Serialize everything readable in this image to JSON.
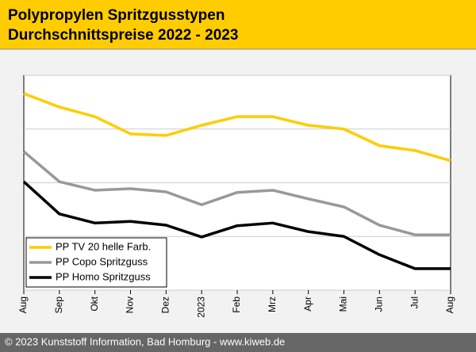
{
  "chart_data": {
    "type": "line",
    "title": "Polypropylen Spritzgusstypen",
    "subtitle": "Durchschnittspreise 2022 - 2023",
    "footer": "© 2023 Kunststoff Information, Bad Homburg - www.kiweb.de",
    "categories": [
      "Aug",
      "Sep",
      "Okt",
      "Nov",
      "Dez",
      "2023",
      "Feb",
      "Mrz",
      "Apr",
      "Mai",
      "Jun",
      "Jul",
      "Aug"
    ],
    "series": [
      {
        "name": "PP TV 20 helle Farb.",
        "color": "#ffcc00",
        "values": [
          3.66,
          3.41,
          3.23,
          2.91,
          2.88,
          3.07,
          3.23,
          3.23,
          3.07,
          3.0,
          2.69,
          2.6,
          2.41
        ]
      },
      {
        "name": "PP Copo Spritzguss",
        "color": "#999999",
        "values": [
          2.58,
          2.02,
          1.86,
          1.89,
          1.83,
          1.59,
          1.82,
          1.86,
          1.7,
          1.55,
          1.21,
          1.03,
          1.03
        ]
      },
      {
        "name": "PP Homo Spritzguss",
        "color": "#000000",
        "values": [
          2.02,
          1.42,
          1.25,
          1.28,
          1.21,
          0.99,
          1.2,
          1.25,
          1.09,
          1.0,
          0.66,
          0.4,
          0.4
        ]
      }
    ],
    "ylim": [
      0,
      4
    ],
    "yticks": [
      0,
      1,
      2,
      3,
      4
    ],
    "grid": true,
    "legend": "bottom-left"
  }
}
